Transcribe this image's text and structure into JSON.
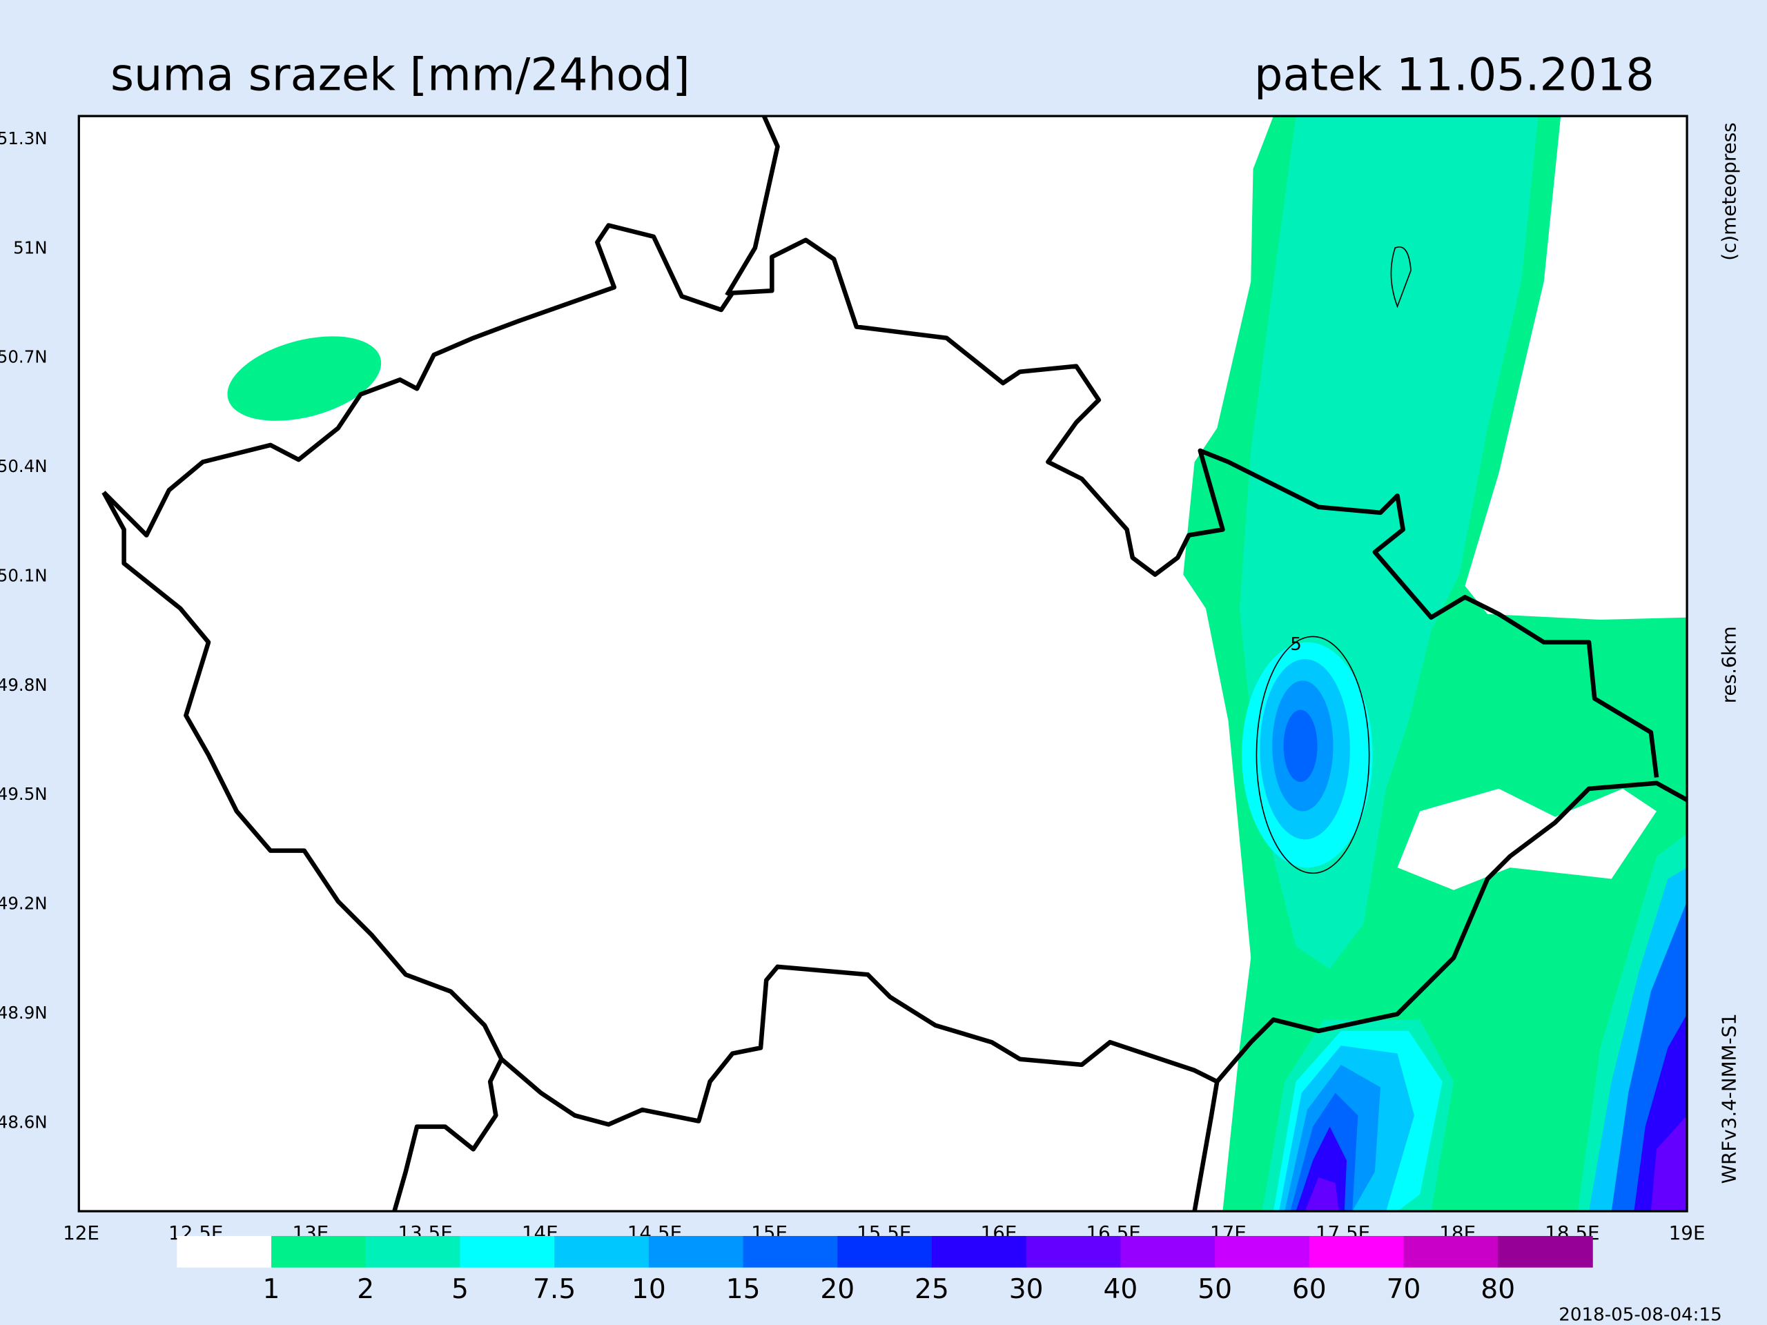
{
  "header": {
    "title": "suma srazek [mm/24hod]",
    "date": "patek 11.05.2018"
  },
  "map": {
    "lat_labels": [
      "51.3N",
      "51N",
      "50.7N",
      "50.4N",
      "50.1N",
      "49.8N",
      "49.5N",
      "49.2N",
      "48.9N",
      "48.6N"
    ],
    "lon_labels": [
      "12E",
      "12.5E",
      "13E",
      "13.5E",
      "14E",
      "14.5E",
      "15E",
      "15.5E",
      "16E",
      "16.5E",
      "17E",
      "17.5E",
      "18E",
      "18.5E",
      "19E"
    ],
    "contour_label": "5"
  },
  "legend": {
    "colors": [
      "#ffffff",
      "#00f08c",
      "#00f0b9",
      "#00ffff",
      "#00c8ff",
      "#0096ff",
      "#0064ff",
      "#0032ff",
      "#2800ff",
      "#6400ff",
      "#9600ff",
      "#c800ff",
      "#ff00ff",
      "#c800c8",
      "#960096"
    ],
    "labels": [
      "1",
      "2",
      "5",
      "7.5",
      "10",
      "15",
      "20",
      "25",
      "30",
      "40",
      "50",
      "60",
      "70",
      "80"
    ]
  },
  "side": {
    "copyright": "(c)meteopress",
    "resolution": "res.6km",
    "model": "WRFv3.4-NMM-S1"
  },
  "timestamp": "2018-05-08-04:15"
}
